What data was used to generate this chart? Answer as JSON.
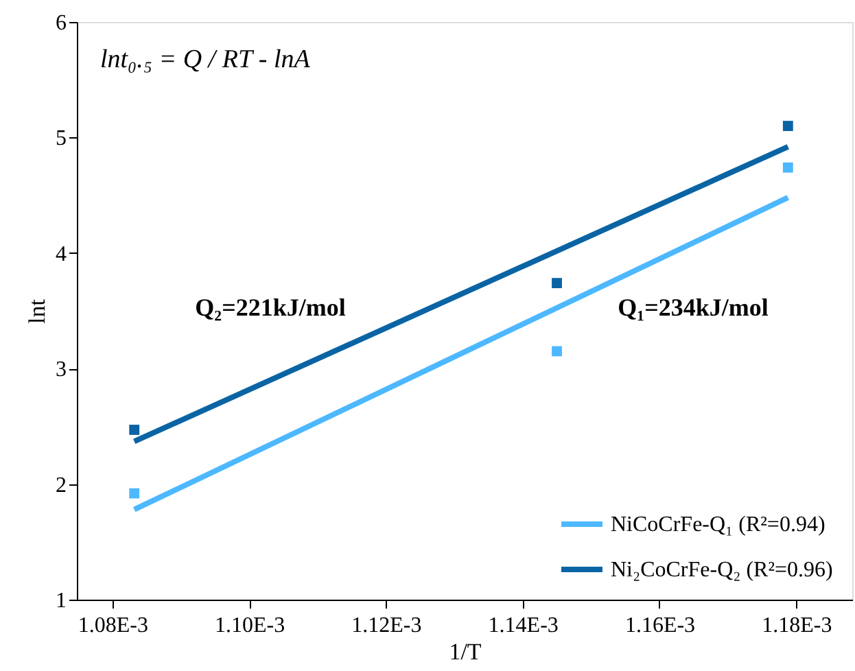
{
  "chart_data": {
    "type": "scatter",
    "xlabel": "1/T",
    "ylabel": "lnt",
    "xlim": [
      0.0010748,
      0.0011882
    ],
    "ylim": [
      1,
      6
    ],
    "xticks": [
      {
        "value": 0.00108,
        "label": "1.08E-3"
      },
      {
        "value": 0.0011,
        "label": "1.10E-3"
      },
      {
        "value": 0.00112,
        "label": "1.12E-3"
      },
      {
        "value": 0.00114,
        "label": "1.14E-3"
      },
      {
        "value": 0.00116,
        "label": "1.16E-3"
      },
      {
        "value": 0.00118,
        "label": "1.18E-3"
      }
    ],
    "yticks": [
      1,
      2,
      3,
      4,
      5,
      6
    ],
    "grid": false,
    "legend": "bottom right",
    "series": [
      {
        "type": "scatter",
        "marker": "square",
        "color": "#4db8ff",
        "x": [
          0.0010832,
          0.001145,
          0.0011788
        ],
        "values": [
          1.92,
          3.15,
          4.74
        ]
      },
      {
        "type": "scatter",
        "marker": "square",
        "color": "#0a64a4",
        "x": [
          0.0010832,
          0.001145,
          0.0011788
        ],
        "values": [
          2.47,
          3.74,
          5.1
        ]
      },
      {
        "type": "line",
        "name": "NiCoCrFe-Q₁ (R²=0.94)",
        "color": "#4db8ff",
        "x": [
          0.0010832,
          0.0011788
        ],
        "values": [
          1.78,
          4.48
        ]
      },
      {
        "type": "line",
        "name": "Ni₂CoCrFe-Q₂ (R²=0.96)",
        "color": "#0a64a4",
        "x": [
          0.0010832,
          0.0011788
        ],
        "values": [
          2.37,
          4.92
        ]
      }
    ],
    "annotations": [
      "lnt₀.₅ = Q / RT - lnA",
      "Q₂=221kJ/mol",
      "Q₁=234kJ/mol"
    ]
  }
}
